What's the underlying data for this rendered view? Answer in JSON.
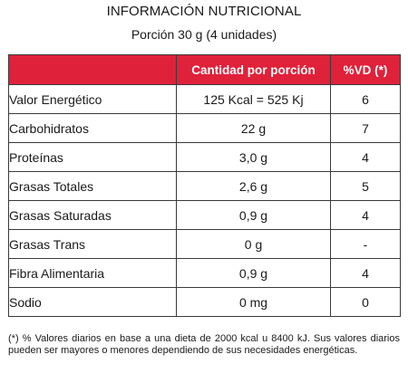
{
  "header": {
    "title": "INFORMACIÓN NUTRICIONAL",
    "subtitle": "Porción 30 g (4 unidades)"
  },
  "table": {
    "columns": [
      "",
      "Cantidad por porción",
      "%VD (*)"
    ],
    "rows": [
      {
        "name": "Valor Energético",
        "amount": "125 Kcal = 525 Kj",
        "vd": "6"
      },
      {
        "name": "Carbohidratos",
        "amount": "22 g",
        "vd": "7"
      },
      {
        "name": "Proteínas",
        "amount": "3,0 g",
        "vd": "4"
      },
      {
        "name": "Grasas Totales",
        "amount": "2,6 g",
        "vd": "5"
      },
      {
        "name": "Grasas Saturadas",
        "amount": "0,9 g",
        "vd": "4"
      },
      {
        "name": "Grasas Trans",
        "amount": "0 g",
        "vd": "-"
      },
      {
        "name": "Fibra Alimentaria",
        "amount": "0,9 g",
        "vd": "4"
      },
      {
        "name": "Sodio",
        "amount": "0 mg",
        "vd": "0"
      }
    ]
  },
  "footnote": "(*) % Valores diarios en base a una dieta de 2000 kcal u 8400 kJ. Sus valores diarios pueden ser mayores o menores dependiendo de sus necesidades energéticas.",
  "colors": {
    "header_bg": "#e0213a",
    "header_text": "#ffffff",
    "border": "#3a3a3a"
  }
}
